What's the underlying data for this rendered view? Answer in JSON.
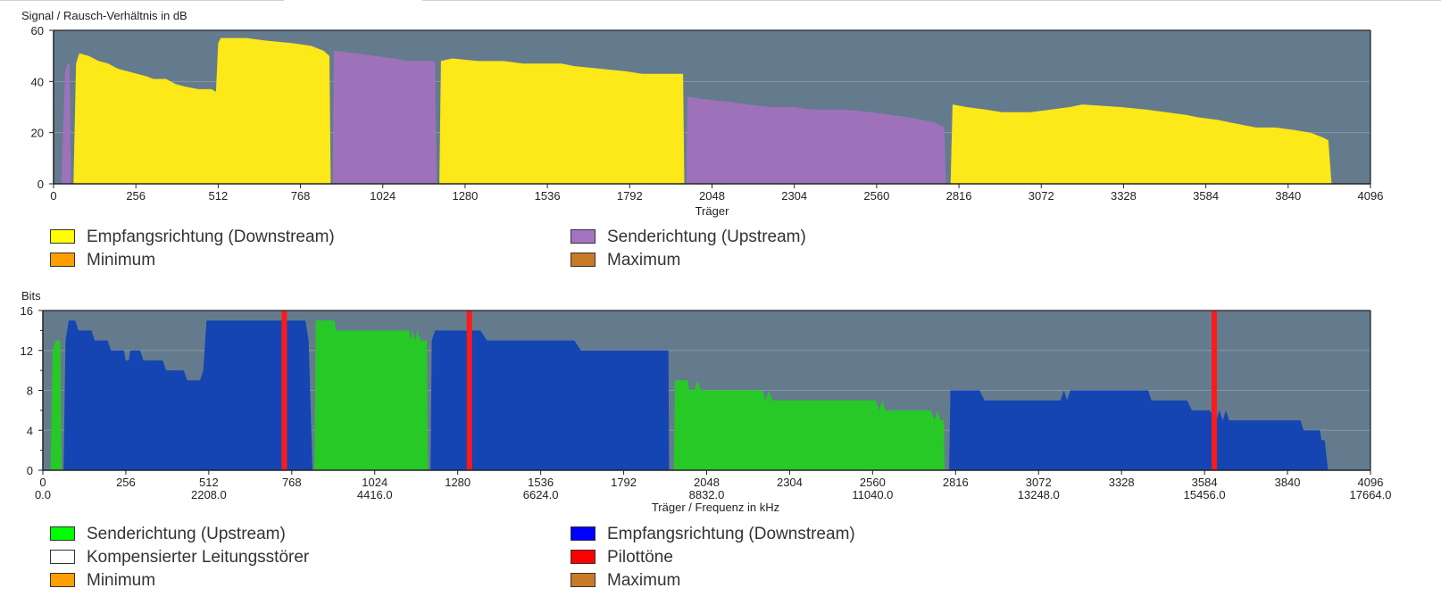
{
  "chart_data": [
    {
      "type": "area",
      "ylabel": "Signal / Rausch-Verhältnis in dB",
      "xlabel": "Träger",
      "xlim": [
        0,
        4096
      ],
      "ylim": [
        0,
        60
      ],
      "x_ticks": [
        "0",
        "256",
        "512",
        "768",
        "1024",
        "1280",
        "1536",
        "1792",
        "2048",
        "2304",
        "2560",
        "2816",
        "3072",
        "3328",
        "3584",
        "3840",
        "4096"
      ],
      "y_ticks": [
        "0",
        "20",
        "40",
        "60"
      ],
      "grid": true,
      "legend_position": "bottom",
      "legend": [
        {
          "label": "Empfangsrichtung (Downstream)",
          "color": "#ffff00"
        },
        {
          "label": "Senderichtung (Upstream)",
          "color": "#a374c2"
        },
        {
          "label": "Minimum",
          "color": "#ff9e00"
        },
        {
          "label": "Maximum",
          "color": "#c97a26"
        }
      ],
      "series": [
        {
          "name": "Senderichtung (Upstream)",
          "color": "#9d72bb",
          "points": [
            [
              24,
              0
            ],
            [
              36,
              44
            ],
            [
              44,
              47
            ],
            [
              50,
              47
            ],
            [
              54,
              0
            ]
          ]
        },
        {
          "name": "Empfangsrichtung (Downstream)",
          "color": "#fde819",
          "points": [
            [
              62,
              0
            ],
            [
              70,
              47
            ],
            [
              80,
              51
            ],
            [
              110,
              50
            ],
            [
              140,
              48
            ],
            [
              170,
              47
            ],
            [
              200,
              45
            ],
            [
              230,
              44
            ],
            [
              260,
              43
            ],
            [
              290,
              42
            ],
            [
              310,
              41
            ],
            [
              350,
              41
            ],
            [
              380,
              39
            ],
            [
              410,
              38
            ],
            [
              450,
              37
            ],
            [
              490,
              37
            ],
            [
              505,
              36
            ],
            [
              512,
              55
            ],
            [
              520,
              57
            ],
            [
              600,
              57
            ],
            [
              660,
              56
            ],
            [
              740,
              55
            ],
            [
              800,
              54
            ],
            [
              840,
              52
            ],
            [
              858,
              50
            ],
            [
              862,
              0
            ]
          ]
        },
        {
          "name": "Senderichtung (Upstream)",
          "color": "#9d72bb",
          "points": [
            [
              868,
              0
            ],
            [
              872,
              52
            ],
            [
              940,
              51
            ],
            [
              1000,
              50
            ],
            [
              1060,
              49
            ],
            [
              1100,
              48
            ],
            [
              1150,
              48
            ],
            [
              1186,
              48
            ],
            [
              1192,
              0
            ]
          ]
        },
        {
          "name": "Empfangsrichtung (Downstream)",
          "color": "#fde819",
          "points": [
            [
              1200,
              0
            ],
            [
              1205,
              48
            ],
            [
              1240,
              49
            ],
            [
              1320,
              48
            ],
            [
              1400,
              48
            ],
            [
              1460,
              47
            ],
            [
              1580,
              47
            ],
            [
              1620,
              46
            ],
            [
              1700,
              45
            ],
            [
              1780,
              44
            ],
            [
              1830,
              43
            ],
            [
              1958,
              43
            ],
            [
              1962,
              0
            ]
          ]
        },
        {
          "name": "Senderichtung (Upstream)",
          "color": "#9d72bb",
          "points": [
            [
              1968,
              0
            ],
            [
              1972,
              34
            ],
            [
              2030,
              33
            ],
            [
              2100,
              32
            ],
            [
              2160,
              31
            ],
            [
              2230,
              30
            ],
            [
              2300,
              30
            ],
            [
              2360,
              29
            ],
            [
              2460,
              29
            ],
            [
              2540,
              28
            ],
            [
              2600,
              27
            ],
            [
              2660,
              26
            ],
            [
              2700,
              25
            ],
            [
              2740,
              24
            ],
            [
              2770,
              22
            ],
            [
              2776,
              0
            ]
          ]
        },
        {
          "name": "Empfangsrichtung (Downstream)",
          "color": "#fde819",
          "points": [
            [
              2790,
              0
            ],
            [
              2796,
              31
            ],
            [
              2840,
              30
            ],
            [
              2900,
              29
            ],
            [
              2950,
              28
            ],
            [
              3040,
              28
            ],
            [
              3100,
              29
            ],
            [
              3160,
              30
            ],
            [
              3200,
              31
            ],
            [
              3320,
              30
            ],
            [
              3400,
              29
            ],
            [
              3460,
              28
            ],
            [
              3520,
              27
            ],
            [
              3560,
              26
            ],
            [
              3620,
              25
            ],
            [
              3660,
              24
            ],
            [
              3700,
              23
            ],
            [
              3740,
              22
            ],
            [
              3800,
              22
            ],
            [
              3860,
              21
            ],
            [
              3910,
              20
            ],
            [
              3950,
              18
            ],
            [
              3965,
              17
            ],
            [
              3975,
              0
            ]
          ]
        }
      ]
    },
    {
      "type": "area",
      "ylabel": "Bits",
      "xlabel": "Träger / Frequenz in kHz",
      "xlim": [
        0,
        4096
      ],
      "ylim": [
        0,
        16
      ],
      "x_ticks": [
        "0",
        "256",
        "512",
        "768",
        "1024",
        "1280",
        "1536",
        "1792",
        "2048",
        "2304",
        "2560",
        "2816",
        "3072",
        "3328",
        "3584",
        "3840",
        "4096"
      ],
      "x_ticks_freq": [
        "0.0",
        "2208.0",
        "4416.0",
        "6624.0",
        "8832.0",
        "11040.0",
        "13248.0",
        "15456.0",
        "17664.0"
      ],
      "y_ticks": [
        "0",
        "4",
        "8",
        "12",
        "16"
      ],
      "grid": true,
      "legend_position": "bottom",
      "legend": [
        {
          "label": "Senderichtung (Upstream)",
          "color": "#00ff00"
        },
        {
          "label": "Empfangsrichtung (Downstream)",
          "color": "#0000ff"
        },
        {
          "label": "Kompensierter Leitungsstörer",
          "color": "#ffffff"
        },
        {
          "label": "Pilottöne",
          "color": "#ff0000"
        },
        {
          "label": "Minimum",
          "color": "#ff9e00"
        },
        {
          "label": "Maximum",
          "color": "#c97a26"
        }
      ],
      "pilot_tones": [
        745,
        1316,
        3614
      ],
      "series": [
        {
          "name": "Senderichtung (Upstream)",
          "color": "#26c926",
          "points": [
            [
              24,
              0
            ],
            [
              30,
              12
            ],
            [
              40,
              13
            ],
            [
              54,
              13
            ],
            [
              58,
              0
            ]
          ]
        },
        {
          "name": "Empfangsrichtung (Downstream)",
          "color": "#1445b3",
          "points": [
            [
              64,
              0
            ],
            [
              70,
              13
            ],
            [
              80,
              15
            ],
            [
              100,
              15
            ],
            [
              110,
              14
            ],
            [
              150,
              14
            ],
            [
              160,
              13
            ],
            [
              200,
              13
            ],
            [
              210,
              12
            ],
            [
              250,
              12
            ],
            [
              255,
              11
            ],
            [
              265,
              11
            ],
            [
              270,
              12
            ],
            [
              300,
              12
            ],
            [
              310,
              11
            ],
            [
              370,
              11
            ],
            [
              380,
              10
            ],
            [
              435,
              10
            ],
            [
              445,
              9
            ],
            [
              485,
              9
            ],
            [
              495,
              10
            ],
            [
              505,
              15
            ],
            [
              810,
              15
            ],
            [
              820,
              13
            ],
            [
              832,
              0
            ]
          ]
        },
        {
          "name": "Senderichtung (Upstream)",
          "color": "#26c926",
          "points": [
            [
              838,
              0
            ],
            [
              842,
              15
            ],
            [
              900,
              15
            ],
            [
              905,
              14
            ],
            [
              1130,
              14
            ],
            [
              1135,
              13
            ],
            [
              1140,
              14
            ],
            [
              1150,
              13
            ],
            [
              1155,
              14
            ],
            [
              1165,
              13
            ],
            [
              1185,
              13
            ],
            [
              1188,
              0
            ]
          ]
        },
        {
          "name": "Empfangsrichtung (Downstream)",
          "color": "#1445b3",
          "points": [
            [
              1196,
              0
            ],
            [
              1200,
              13
            ],
            [
              1210,
              14
            ],
            [
              1280,
              14
            ],
            [
              1320,
              14
            ],
            [
              1350,
              14
            ],
            [
              1370,
              13
            ],
            [
              1640,
              13
            ],
            [
              1660,
              12
            ],
            [
              1930,
              12
            ],
            [
              1932,
              0
            ]
          ]
        },
        {
          "name": "Senderichtung (Upstream)",
          "color": "#26c926",
          "points": [
            [
              1947,
              0
            ],
            [
              1950,
              9
            ],
            [
              1990,
              9
            ],
            [
              1995,
              8
            ],
            [
              2010,
              8
            ],
            [
              2020,
              9
            ],
            [
              2030,
              8
            ],
            [
              2220,
              8
            ],
            [
              2230,
              7
            ],
            [
              2240,
              8
            ],
            [
              2250,
              7
            ],
            [
              2570,
              7
            ],
            [
              2580,
              6
            ],
            [
              2590,
              7
            ],
            [
              2600,
              6
            ],
            [
              2740,
              6
            ],
            [
              2750,
              5
            ],
            [
              2760,
              6
            ],
            [
              2770,
              5
            ],
            [
              2780,
              5
            ],
            [
              2782,
              0
            ]
          ]
        },
        {
          "name": "Empfangsrichtung (Downstream)",
          "color": "#1445b3",
          "points": [
            [
              2796,
              0
            ],
            [
              2800,
              8
            ],
            [
              2890,
              8
            ],
            [
              2905,
              7
            ],
            [
              3140,
              7
            ],
            [
              3150,
              8
            ],
            [
              3160,
              7
            ],
            [
              3170,
              8
            ],
            [
              3410,
              8
            ],
            [
              3420,
              7
            ],
            [
              3530,
              7
            ],
            [
              3545,
              6
            ],
            [
              3600,
              6
            ],
            [
              3620,
              5
            ],
            [
              3630,
              6
            ],
            [
              3640,
              5
            ],
            [
              3650,
              6
            ],
            [
              3660,
              5
            ],
            [
              3880,
              5
            ],
            [
              3890,
              4
            ],
            [
              3940,
              4
            ],
            [
              3945,
              3
            ],
            [
              3955,
              3
            ],
            [
              3965,
              0
            ]
          ]
        }
      ]
    }
  ],
  "colors": {
    "plot_background": "#647b8e",
    "grid": "#8798a7"
  }
}
